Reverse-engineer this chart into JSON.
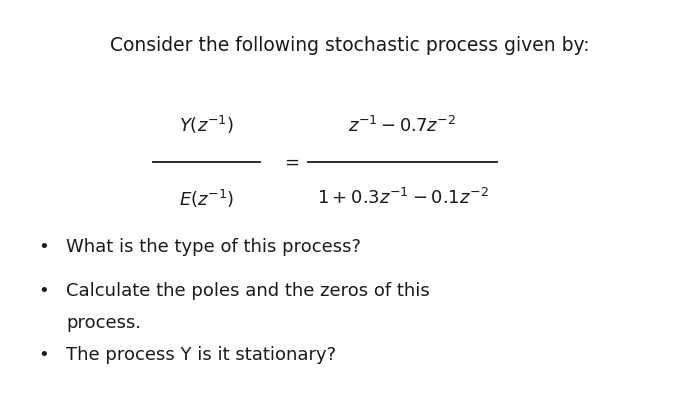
{
  "title_text": "Consider the following stochastic process given by:",
  "title_fontsize": 13.5,
  "background_color": "#ffffff",
  "text_color": "#1a1a1a",
  "formula_fontsize": 13.0,
  "bullet_fontsize": 13.0,
  "numerator_lhs": "$Y(z^{-1})$",
  "denominator_lhs": "$E(z^{-1})$",
  "numerator_rhs": "$z^{-1}-0.7z^{-2}$",
  "denominator_rhs": "$1+0.3z^{-1}-0.1z^{-2}$",
  "bullet1": "What is the type of this process?",
  "bullet2a": "Calculate the poles and the zeros of this",
  "bullet2b": "process.",
  "bullet3": "The process Y is it stationary?"
}
